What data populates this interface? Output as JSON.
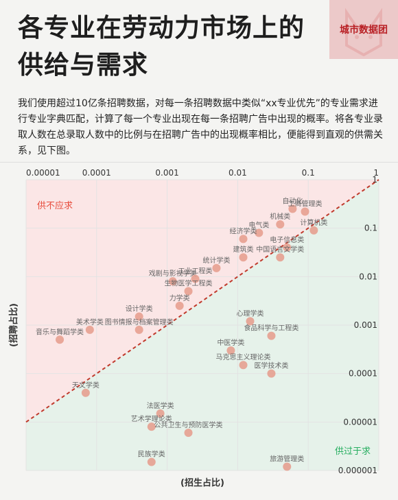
{
  "header": {
    "title_line1": "各专业在劳动力市场上的",
    "title_line2": "供给与需求",
    "brand": "城市数据团"
  },
  "description": "我们使用超过10亿条招聘数据，对每一条招聘数据中类似“xx专业优先”的专业需求进行专业字典匹配，计算了每一个专业出现在每一条招聘广告中出现的概率。将各专业录取人数在总录取人数中的比例与在招聘广告中的出现概率相比，便能得到直观的供需关系，见下图。",
  "colors": {
    "undersupply": "#fbe6e6",
    "oversupply": "#e6f2ea",
    "dot": "#e59b8b",
    "diagonal": "#c0392b",
    "label_red": "#e74c3c",
    "label_green": "#27ae60"
  },
  "chart_data": {
    "type": "scatter",
    "xlabel": "(招生占比)",
    "ylabel": "(招聘占比)",
    "x_scale": "log",
    "y_scale": "log",
    "xlim": [
      1e-05,
      1
    ],
    "ylim": [
      1e-06,
      1
    ],
    "x_ticks": [
      "0.00001",
      "0.0001",
      "0.001",
      "0.01",
      "0.1",
      "1"
    ],
    "y_ticks": [
      "1",
      "0.1",
      "0.01",
      "0.001",
      "0.0001",
      "0.00001",
      "0.000001"
    ],
    "regions": {
      "above": "供不应求",
      "below": "供过于求"
    },
    "reference_line": "y = x",
    "labeled_points": [
      {
        "label": "自动化",
        "x": 0.06,
        "y": 0.25
      },
      {
        "label": "工商管理类",
        "x": 0.09,
        "y": 0.22
      },
      {
        "label": "机械类",
        "x": 0.04,
        "y": 0.12
      },
      {
        "label": "计算机类",
        "x": 0.12,
        "y": 0.09
      },
      {
        "label": "电气类",
        "x": 0.02,
        "y": 0.08
      },
      {
        "label": "经济学类",
        "x": 0.012,
        "y": 0.06
      },
      {
        "label": "电子信息类",
        "x": 0.05,
        "y": 0.04
      },
      {
        "label": "中国语言文学类",
        "x": 0.04,
        "y": 0.025
      },
      {
        "label": "建筑类",
        "x": 0.012,
        "y": 0.025
      },
      {
        "label": "统计学类",
        "x": 0.005,
        "y": 0.015
      },
      {
        "label": "戏剧与影视学类",
        "x": 0.0012,
        "y": 0.008
      },
      {
        "label": "工业工程类",
        "x": 0.0025,
        "y": 0.009
      },
      {
        "label": "生物医学工程类",
        "x": 0.002,
        "y": 0.005
      },
      {
        "label": "力学类",
        "x": 0.0015,
        "y": 0.0025
      },
      {
        "label": "设计学类",
        "x": 0.0004,
        "y": 0.0015
      },
      {
        "label": "美术学类",
        "x": 8e-05,
        "y": 0.0008
      },
      {
        "label": "音乐与舞蹈学类",
        "x": 3e-05,
        "y": 0.0005
      },
      {
        "label": "图书情报与档案管理类",
        "x": 0.0004,
        "y": 0.0008
      },
      {
        "label": "食品科学与工程类",
        "x": 0.03,
        "y": 0.0006
      },
      {
        "label": "心理学类",
        "x": 0.015,
        "y": 0.0012
      },
      {
        "label": "中医学类",
        "x": 0.008,
        "y": 0.0003
      },
      {
        "label": "马克思主义理论类",
        "x": 0.012,
        "y": 0.00015
      },
      {
        "label": "医学技术类",
        "x": 0.03,
        "y": 0.0001
      },
      {
        "label": "天文学类",
        "x": 7e-05,
        "y": 4e-05
      },
      {
        "label": "法医学类",
        "x": 0.0008,
        "y": 1.5e-05
      },
      {
        "label": "艺术学理论类",
        "x": 0.0006,
        "y": 8e-06
      },
      {
        "label": "公共卫生与预防医学类",
        "x": 0.002,
        "y": 6e-06
      },
      {
        "label": "民族学类",
        "x": 0.0006,
        "y": 1.5e-06
      },
      {
        "label": "旅游管理类",
        "x": 0.05,
        "y": 1.2e-06
      }
    ]
  }
}
